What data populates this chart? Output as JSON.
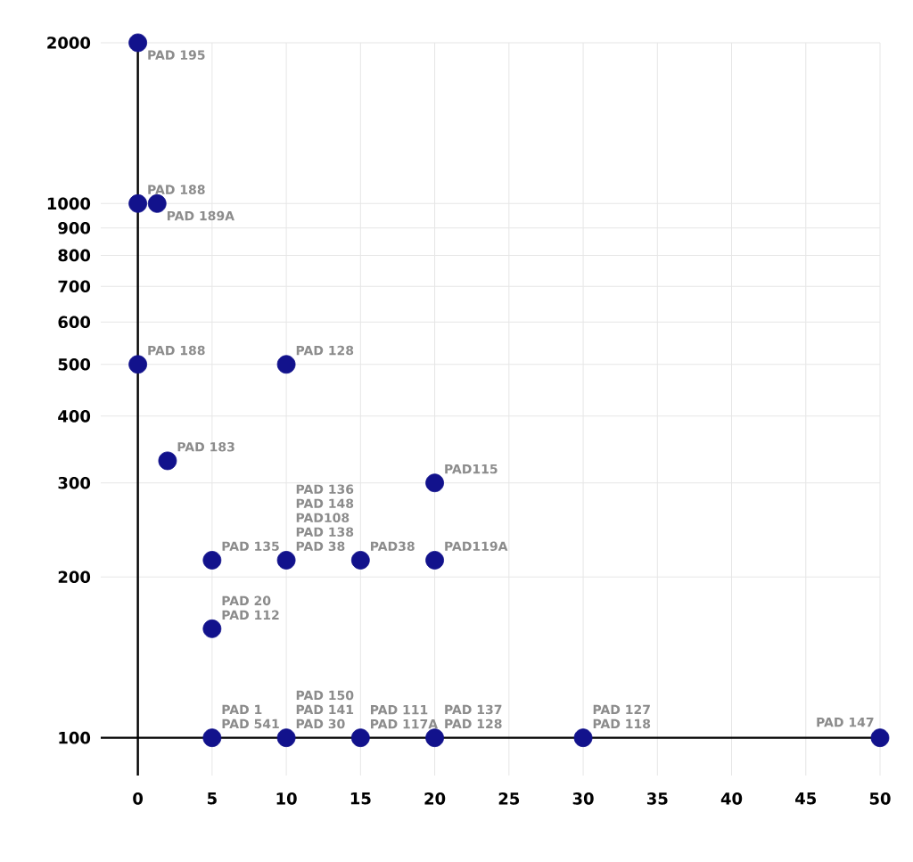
{
  "chart_data": {
    "type": "scatter",
    "color": "#12128c",
    "log": "y",
    "grid": true,
    "x": [
      0,
      0,
      1.3,
      0,
      10,
      2,
      20,
      5,
      10,
      15,
      20,
      5,
      5,
      10,
      15,
      20,
      30,
      50
    ],
    "values": [
      2000,
      1000,
      1000,
      500,
      500,
      330,
      300,
      215,
      215,
      215,
      215,
      160,
      100,
      100,
      100,
      100,
      100,
      100
    ],
    "xlim": [
      -2.5,
      50
    ],
    "ylim": [
      85,
      2000
    ],
    "xticks": [
      0,
      5,
      10,
      15,
      20,
      25,
      30,
      35,
      40,
      45,
      50
    ],
    "yticks": [
      100,
      200,
      300,
      400,
      500,
      600,
      700,
      800,
      900,
      1000,
      2000
    ],
    "annotations": [
      {
        "text": "PAD 195",
        "x": 0,
        "y": 2000
      },
      {
        "text": "PAD 188",
        "x": 0,
        "y": 1000
      },
      {
        "text": "PAD 189A",
        "x": 1.3,
        "y": 1000
      },
      {
        "text": "PAD 188",
        "x": 0,
        "y": 500
      },
      {
        "text": "PAD 128",
        "x": 10,
        "y": 500
      },
      {
        "text": "PAD 183",
        "x": 2,
        "y": 330
      },
      {
        "text": "PAD115",
        "x": 20,
        "y": 300
      },
      {
        "text": "PAD 135",
        "x": 5,
        "y": 215
      },
      "PAD 136",
      "PAD 148",
      "PAD108",
      {
        "text": "PAD 138",
        "x": 10,
        "y": 215
      },
      {
        "text": "PAD 38",
        "x": 10,
        "y": 215
      },
      {
        "text": "PAD38",
        "x": 15,
        "y": 215
      },
      {
        "text": "PAD119A",
        "x": 20,
        "y": 215
      },
      {
        "text": "PAD 20",
        "x": 5,
        "y": 160
      },
      {
        "text": "PAD 112",
        "x": 5,
        "y": 160
      },
      {
        "text": "PAD 1",
        "x": 5,
        "y": 100
      },
      {
        "text": "PAD 541",
        "x": 5,
        "y": 100
      },
      "PAD 150",
      {
        "text": "PAD 141",
        "x": 10,
        "y": 100
      },
      {
        "text": "PAD 30",
        "x": 10,
        "y": 100
      },
      {
        "text": "PAD 111",
        "x": 15,
        "y": 100
      },
      {
        "text": "PAD 117A",
        "x": 15,
        "y": 100
      },
      {
        "text": "PAD 137",
        "x": 20,
        "y": 100
      },
      {
        "text": "PAD 128",
        "x": 20,
        "y": 100
      },
      {
        "text": "PAD 127",
        "x": 30,
        "y": 100
      },
      {
        "text": "PAD 118",
        "x": 30,
        "y": 100
      },
      {
        "text": "PAD 147",
        "x": 50,
        "y": 100
      }
    ]
  }
}
